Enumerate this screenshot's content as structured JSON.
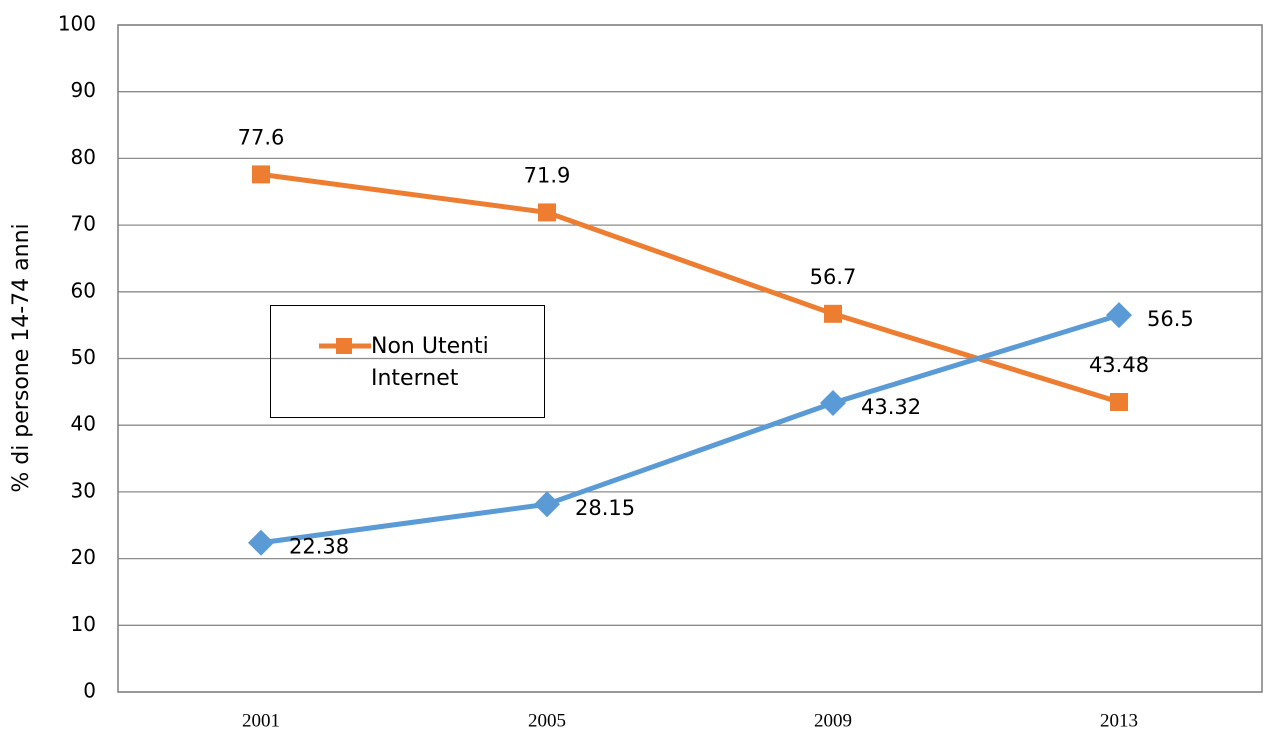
{
  "chart_data": {
    "type": "line",
    "y_label": "% di persone 14-74 anni",
    "categories": [
      "2001",
      "2005",
      "2009",
      "2013"
    ],
    "series": [
      {
        "name": "Non Utenti Internet",
        "color": "#ed7d31",
        "marker": "square",
        "values": [
          77.6,
          71.9,
          56.7,
          43.48
        ]
      },
      {
        "color": "#5b9bd5",
        "marker": "diamond",
        "values": [
          22.38,
          28.15,
          43.32,
          56.5
        ]
      }
    ],
    "ylim": [
      0,
      100
    ],
    "yticks": [
      0,
      10,
      20,
      30,
      40,
      50,
      60,
      70,
      80,
      90,
      100
    ],
    "grid": true
  }
}
